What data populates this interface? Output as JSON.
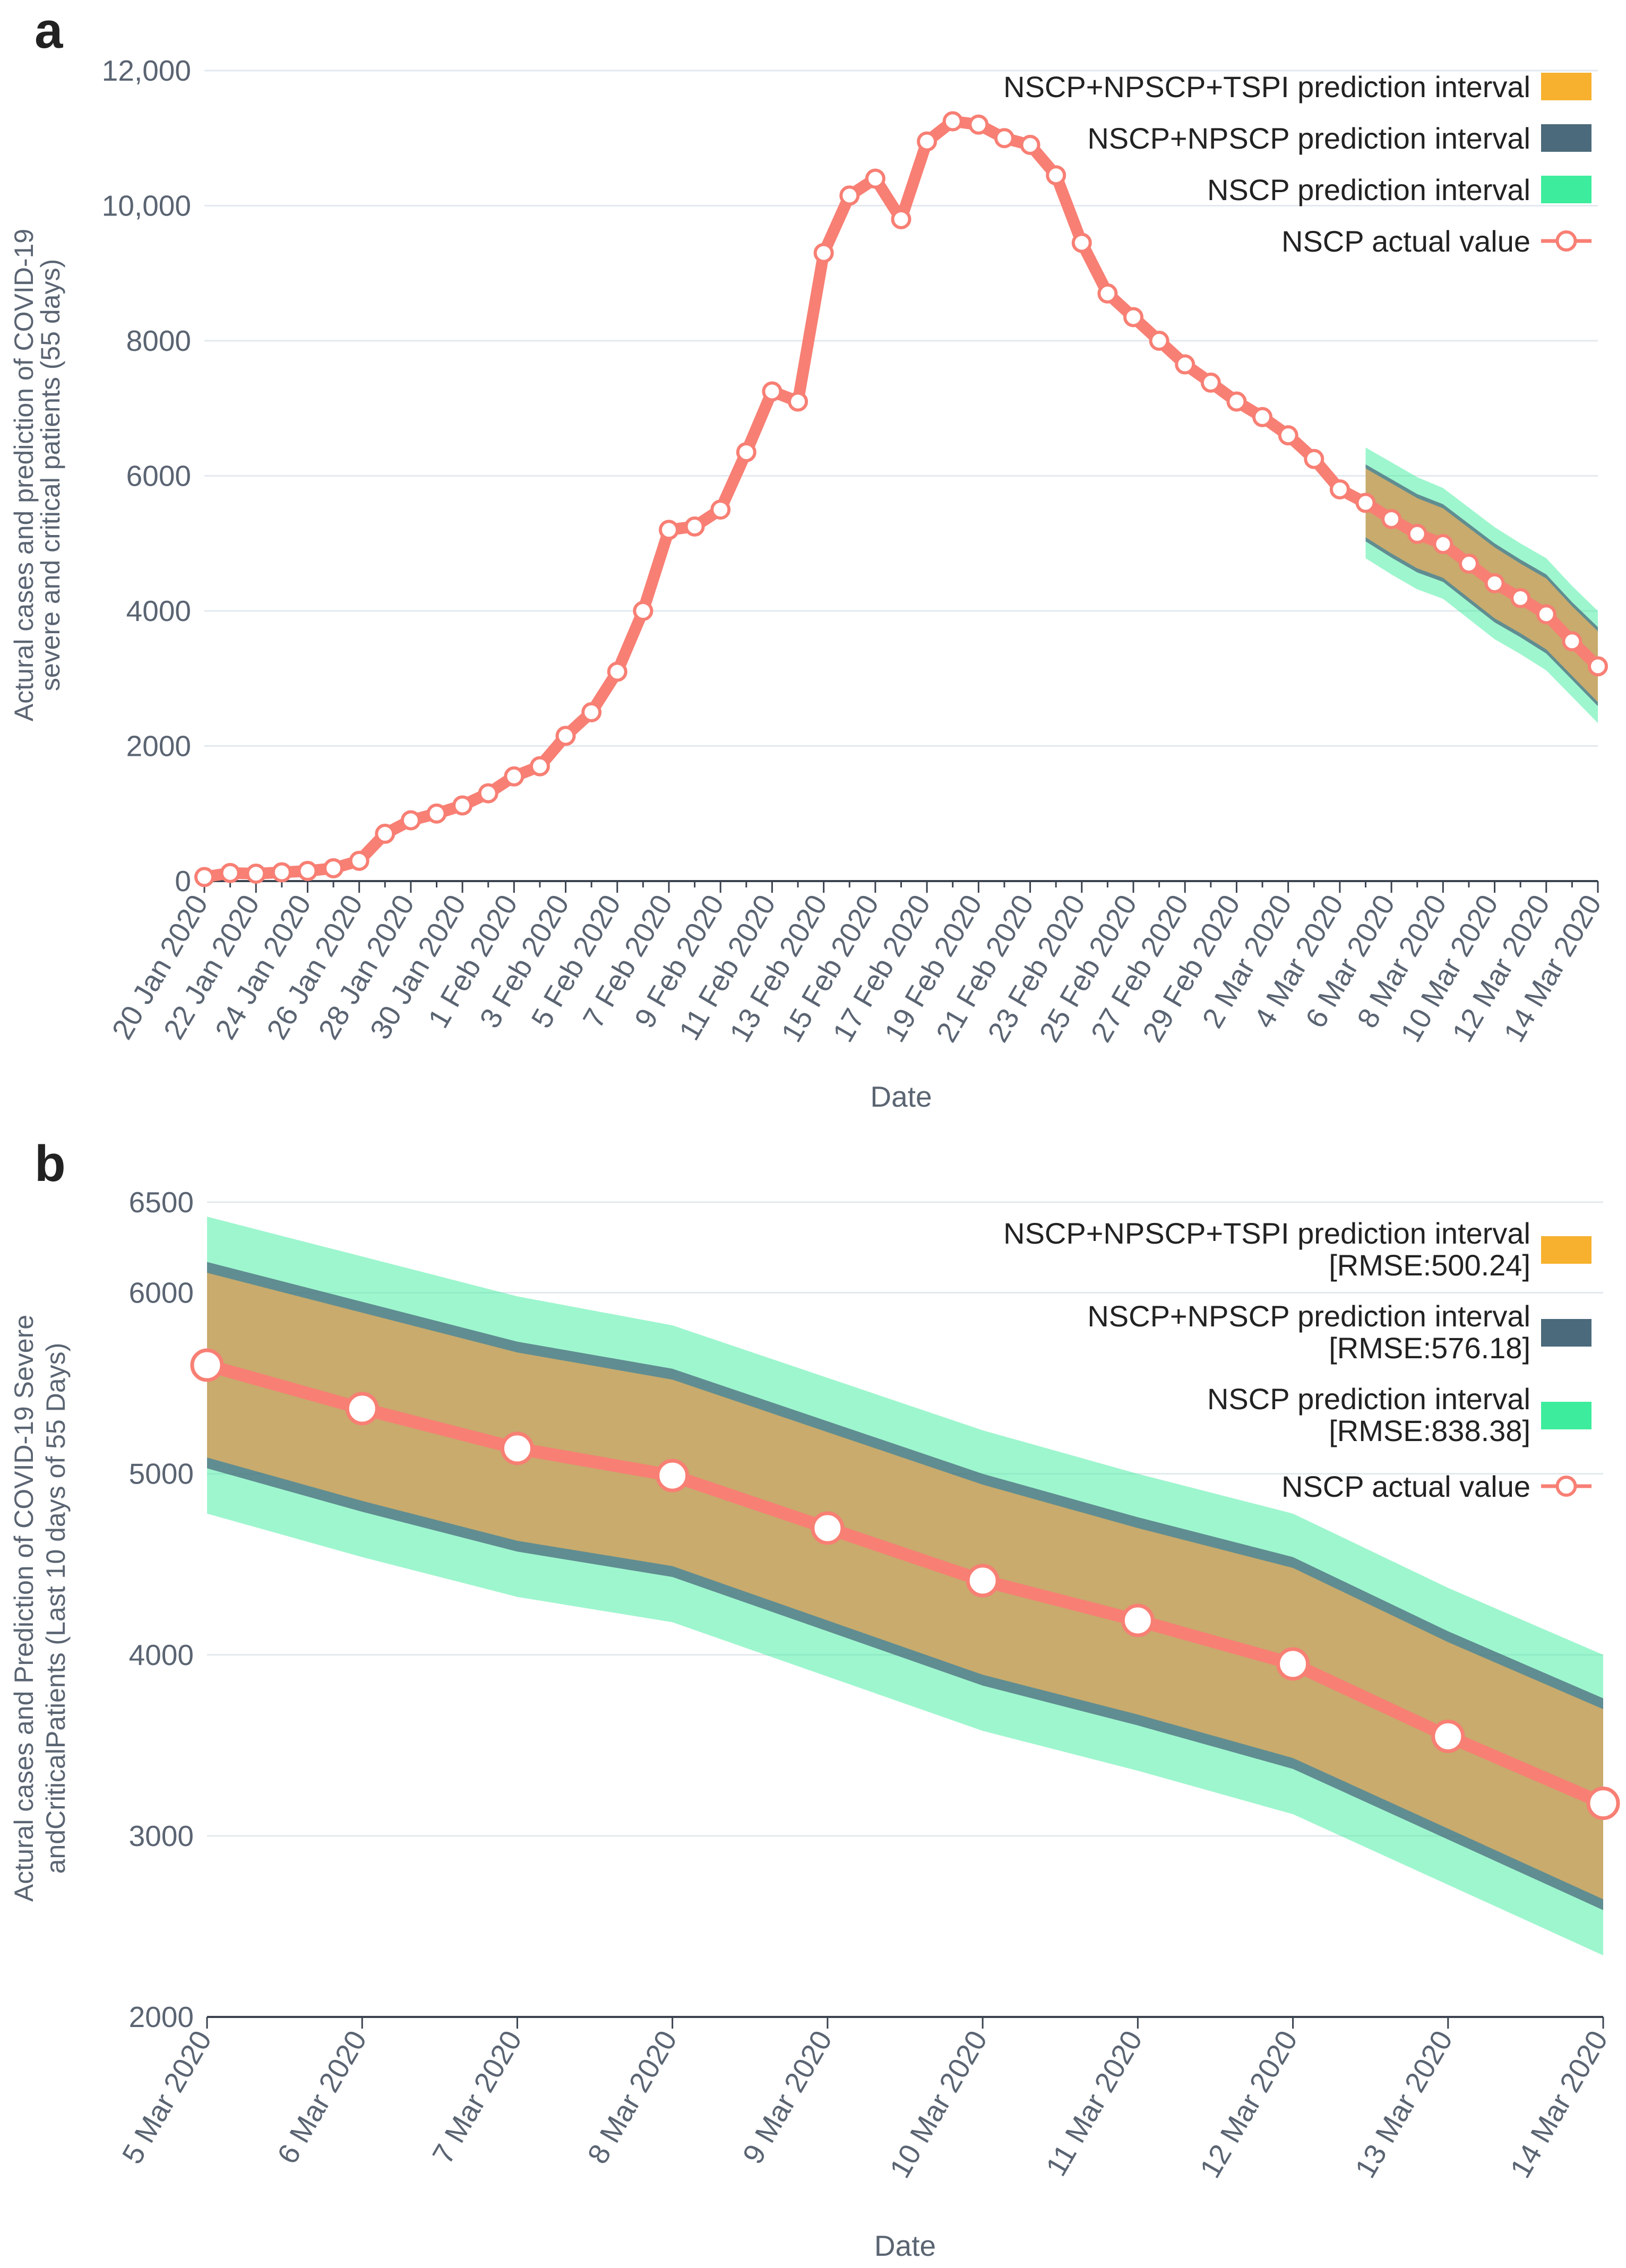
{
  "colors": {
    "actual": "#f87f74",
    "outer": "#3ded9d",
    "middle": "#4b6a7c",
    "inner": "#f7b12e",
    "grid": "#e3e9ee",
    "axis": "#5a6472"
  },
  "chart_data": [
    {
      "panel_label": "a",
      "type": "line",
      "xlabel": "Date",
      "ylabel_lines": [
        "Actural cases and prediction of COVID-19",
        "severe and critical patients (55 days)"
      ],
      "ylim": [
        0,
        12000
      ],
      "yticks": [
        0,
        2000,
        4000,
        6000,
        8000,
        10000,
        12000
      ],
      "ytick_labels": [
        "0",
        "2000",
        "4000",
        "6000",
        "8000",
        "10,000",
        "12,000"
      ],
      "xlim": [
        0,
        54
      ],
      "xtick_positions": [
        0,
        2,
        4,
        6,
        8,
        10,
        12,
        14,
        16,
        18,
        20,
        22,
        24,
        26,
        28,
        30,
        32,
        34,
        36,
        38,
        40,
        42,
        44,
        46,
        48,
        50,
        52,
        54
      ],
      "xtick_labels": [
        "20 Jan 2020",
        "22 Jan 2020",
        "24 Jan 2020",
        "26 Jan 2020",
        "28 Jan 2020",
        "30 Jan 2020",
        "1 Feb 2020",
        "3 Feb 2020",
        "5 Feb 2020",
        "7 Feb 2020",
        "9 Feb 2020",
        "11 Feb 2020",
        "13 Feb 2020",
        "15 Feb 2020",
        "17 Feb 2020",
        "19 Feb 2020",
        "21 Feb 2020",
        "23 Feb 2020",
        "25 Feb 2020",
        "27 Feb 2020",
        "29 Feb 2020",
        "2 Mar 2020",
        "4 Mar 2020",
        "6 Mar 2020",
        "8 Mar 2020",
        "10 Mar 2020",
        "12 Mar 2020",
        "14 Mar 2020"
      ],
      "actual_values": [
        60,
        120,
        110,
        130,
        150,
        190,
        300,
        700,
        900,
        1000,
        1120,
        1300,
        1550,
        1700,
        2150,
        2500,
        3100,
        4000,
        5200,
        5250,
        5500,
        6350,
        7250,
        7100,
        9300,
        10150,
        10400,
        9800,
        10950,
        11250,
        11200,
        11000,
        10900,
        10450,
        9450,
        8700,
        8350,
        8000,
        7650,
        7380,
        7100,
        6870,
        6600,
        6250,
        5800,
        5600,
        5360,
        5140,
        4990,
        4700,
        4410,
        4190,
        3950,
        3550,
        3180
      ],
      "interval_start_index": 45,
      "legend": [
        {
          "label": "NSCP+NPSCP+TSPI prediction interval",
          "kind": "inner"
        },
        {
          "label": "NSCP+NPSCP prediction interval",
          "kind": "middle"
        },
        {
          "label": "NSCP prediction interval",
          "kind": "outer"
        },
        {
          "label": "NSCP actual value",
          "kind": "line"
        }
      ]
    },
    {
      "panel_label": "b",
      "type": "line",
      "xlabel": "Date",
      "ylabel_lines": [
        "Actural cases and Prediction of COVID-19 Severe",
        "andCriticalPatients (Last 10 days of 55 Days)"
      ],
      "ylim": [
        2000,
        6500
      ],
      "yticks": [
        2000,
        3000,
        4000,
        5000,
        6000,
        6500
      ],
      "ytick_labels": [
        "2000",
        "3000",
        "4000",
        "5000",
        "6000",
        "6500"
      ],
      "categories": [
        "5 Mar 2020",
        "6 Mar 2020",
        "7 Mar 2020",
        "8 Mar 2020",
        "9 Mar 2020",
        "10 Mar 2020",
        "11 Mar 2020",
        "12 Mar 2020",
        "13 Mar 2020",
        "14 Mar 2020"
      ],
      "actual_values": [
        5600,
        5360,
        5140,
        4990,
        4700,
        4410,
        4190,
        3950,
        3550,
        3180
      ],
      "outer_upper": [
        6420,
        6200,
        5980,
        5820,
        5530,
        5240,
        5000,
        4780,
        4370,
        4000
      ],
      "outer_lower": [
        4780,
        4540,
        4320,
        4180,
        3880,
        3580,
        3360,
        3120,
        2730,
        2340
      ],
      "middle_upper": [
        6170,
        5950,
        5730,
        5580,
        5290,
        5000,
        4760,
        4540,
        4130,
        3760
      ],
      "middle_lower": [
        5030,
        4790,
        4570,
        4430,
        4130,
        3830,
        3610,
        3370,
        2980,
        2590
      ],
      "inner_upper": [
        6110,
        5890,
        5670,
        5520,
        5230,
        4940,
        4700,
        4480,
        4070,
        3700
      ],
      "inner_lower": [
        5090,
        4850,
        4630,
        4490,
        4190,
        3890,
        3670,
        3430,
        3040,
        2650
      ],
      "legend": [
        {
          "label": "NSCP+NPSCP+TSPI prediction interval",
          "label2": "[RMSE:500.24]",
          "kind": "inner"
        },
        {
          "label": "NSCP+NPSCP prediction interval",
          "label2": "[RMSE:576.18]",
          "kind": "middle"
        },
        {
          "label": "NSCP prediction interval",
          "label2": "[RMSE:838.38]",
          "kind": "outer"
        },
        {
          "label": "NSCP actual value",
          "kind": "line"
        }
      ]
    }
  ]
}
